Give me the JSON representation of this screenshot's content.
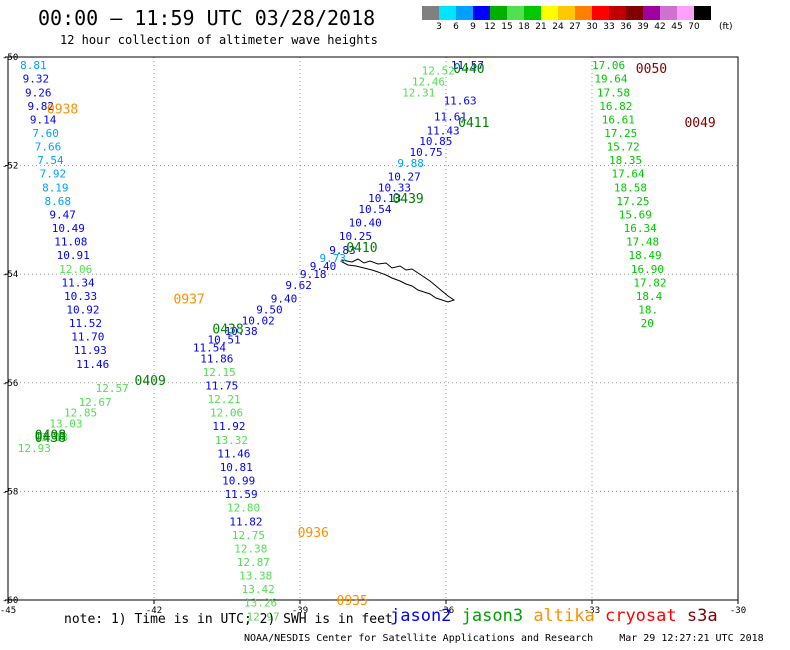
{
  "header": {
    "title": "00:00 – 11:59 UTC 03/28/2018",
    "subtitle": "12 hour collection of altimeter wave heights"
  },
  "colorbar": {
    "colors": [
      "#808080",
      "#00e5ff",
      "#00a0ff",
      "#0000ff",
      "#00b000",
      "#50e050",
      "#00c800",
      "#ffff00",
      "#ffc800",
      "#ff8000",
      "#ff0000",
      "#c00000",
      "#800000",
      "#a000a0",
      "#d070d0",
      "#ffa0ff",
      "#000000"
    ],
    "labels": [
      "3",
      "6",
      "9",
      "12",
      "15",
      "18",
      "21",
      "24",
      "27",
      "30",
      "33",
      "36",
      "39",
      "42",
      "45",
      "70"
    ],
    "unit": "(ft)"
  },
  "axes": {
    "lon_ticks": [
      {
        "value": -45,
        "label": "-45"
      },
      {
        "value": -42,
        "label": "-42"
      },
      {
        "value": -39,
        "label": "-39"
      },
      {
        "value": -36,
        "label": "-36"
      },
      {
        "value": -33,
        "label": "-33"
      },
      {
        "value": -30,
        "label": "-30"
      }
    ],
    "lat_ticks": [
      {
        "value": -50,
        "label": "-50"
      },
      {
        "value": -52,
        "label": "-52"
      },
      {
        "value": -54,
        "label": "-54"
      },
      {
        "value": -56,
        "label": "-56"
      },
      {
        "value": -58,
        "label": "-58"
      },
      {
        "value": -60,
        "label": "-60"
      }
    ]
  },
  "tracks": [
    {
      "name": "track-0938",
      "points": [
        {
          "lon": -44.75,
          "lat": -50.15,
          "v": "8.81",
          "c": "#00a0ff"
        },
        {
          "lon": -44.7,
          "lat": -50.4,
          "v": "9.32",
          "c": "#0000ff"
        },
        {
          "lon": -44.65,
          "lat": -50.65,
          "v": "9.26",
          "c": "#0000ff"
        },
        {
          "lon": -44.6,
          "lat": -50.9,
          "v": "9.82",
          "c": "#0000ff"
        },
        {
          "lon": -44.55,
          "lat": -51.15,
          "v": "9.14",
          "c": "#0000ff"
        },
        {
          "lon": -44.5,
          "lat": -51.4,
          "v": "7.60",
          "c": "#00a0ff"
        },
        {
          "lon": -44.45,
          "lat": -51.65,
          "v": "7.66",
          "c": "#00a0ff"
        },
        {
          "lon": -44.4,
          "lat": -51.9,
          "v": "7.54",
          "c": "#00a0ff"
        },
        {
          "lon": -44.35,
          "lat": -52.15,
          "v": "7.92",
          "c": "#00a0ff"
        },
        {
          "lon": -44.3,
          "lat": -52.4,
          "v": "8.19",
          "c": "#00a0ff"
        },
        {
          "lon": -44.25,
          "lat": -52.65,
          "v": "8.68",
          "c": "#00a0ff"
        },
        {
          "lon": -44.15,
          "lat": -52.9,
          "v": "9.47",
          "c": "#0000ff"
        },
        {
          "lon": -44.1,
          "lat": -53.15,
          "v": "10.49",
          "c": "#0000ff"
        },
        {
          "lon": -44.05,
          "lat": -53.4,
          "v": "11.08",
          "c": "#0000ff"
        },
        {
          "lon": -44.0,
          "lat": -53.65,
          "v": "10.91",
          "c": "#0000ff"
        },
        {
          "lon": -43.95,
          "lat": -53.9,
          "v": "12.06",
          "c": "#50e050"
        },
        {
          "lon": -43.9,
          "lat": -54.15,
          "v": "11.34",
          "c": "#0000ff"
        },
        {
          "lon": -43.85,
          "lat": -54.4,
          "v": "10.33",
          "c": "#0000ff"
        },
        {
          "lon": -43.8,
          "lat": -54.65,
          "v": "10.92",
          "c": "#0000ff"
        },
        {
          "lon": -43.75,
          "lat": -54.9,
          "v": "11.52",
          "c": "#0000ff"
        },
        {
          "lon": -43.7,
          "lat": -55.15,
          "v": "11.70",
          "c": "#0000ff"
        },
        {
          "lon": -43.65,
          "lat": -55.4,
          "v": "11.93",
          "c": "#0000ff"
        },
        {
          "lon": -43.6,
          "lat": -55.65,
          "v": "11.46",
          "c": "#0000ff"
        }
      ]
    },
    {
      "name": "track-0936",
      "points": [
        {
          "lon": -41.05,
          "lat": -55.55,
          "v": "11.86",
          "c": "#0000ff"
        },
        {
          "lon": -41.0,
          "lat": -55.8,
          "v": "12.15",
          "c": "#50e050"
        },
        {
          "lon": -40.95,
          "lat": -56.05,
          "v": "11.75",
          "c": "#0000ff"
        },
        {
          "lon": -40.9,
          "lat": -56.3,
          "v": "12.21",
          "c": "#50e050"
        },
        {
          "lon": -40.85,
          "lat": -56.55,
          "v": "12.06",
          "c": "#50e050"
        },
        {
          "lon": -40.8,
          "lat": -56.8,
          "v": "11.92",
          "c": "#0000ff"
        },
        {
          "lon": -40.75,
          "lat": -57.05,
          "v": "13.32",
          "c": "#50e050"
        },
        {
          "lon": -40.7,
          "lat": -57.3,
          "v": "11.46",
          "c": "#0000ff"
        },
        {
          "lon": -40.65,
          "lat": -57.55,
          "v": "10.81",
          "c": "#0000ff"
        },
        {
          "lon": -40.6,
          "lat": -57.8,
          "v": "10.99",
          "c": "#0000ff"
        },
        {
          "lon": -40.55,
          "lat": -58.05,
          "v": "11.59",
          "c": "#0000ff"
        },
        {
          "lon": -40.5,
          "lat": -58.3,
          "v": "12.80",
          "c": "#50e050"
        },
        {
          "lon": -40.45,
          "lat": -58.55,
          "v": "11.82",
          "c": "#0000ff"
        },
        {
          "lon": -40.4,
          "lat": -58.8,
          "v": "12.75",
          "c": "#50e050"
        },
        {
          "lon": -40.35,
          "lat": -59.05,
          "v": "12.38",
          "c": "#50e050"
        },
        {
          "lon": -40.3,
          "lat": -59.3,
          "v": "12.87",
          "c": "#50e050"
        },
        {
          "lon": -40.25,
          "lat": -59.55,
          "v": "13.38",
          "c": "#50e050"
        },
        {
          "lon": -40.2,
          "lat": -59.8,
          "v": "13.42",
          "c": "#50e050"
        },
        {
          "lon": -40.15,
          "lat": -60.05,
          "v": "13.26",
          "c": "#50e050"
        },
        {
          "lon": -40.1,
          "lat": -60.3,
          "v": "12.97",
          "c": "#50e050"
        }
      ]
    },
    {
      "name": "track-0050",
      "points": [
        {
          "lon": -33.0,
          "lat": -50.15,
          "v": "17.06",
          "c": "#00c800"
        },
        {
          "lon": -32.95,
          "lat": -50.4,
          "v": "19.64",
          "c": "#00c800"
        },
        {
          "lon": -32.9,
          "lat": -50.65,
          "v": "17.58",
          "c": "#00c800"
        },
        {
          "lon": -32.85,
          "lat": -50.9,
          "v": "16.82",
          "c": "#00c800"
        },
        {
          "lon": -32.8,
          "lat": -51.15,
          "v": "16.61",
          "c": "#00c800"
        },
        {
          "lon": -32.75,
          "lat": -51.4,
          "v": "17.25",
          "c": "#00c800"
        },
        {
          "lon": -32.7,
          "lat": -51.65,
          "v": "15.72",
          "c": "#00c800"
        },
        {
          "lon": -32.65,
          "lat": -51.9,
          "v": "18.35",
          "c": "#00c800"
        },
        {
          "lon": -32.6,
          "lat": -52.15,
          "v": "17.64",
          "c": "#00c800"
        },
        {
          "lon": -32.55,
          "lat": -52.4,
          "v": "18.58",
          "c": "#00c800"
        },
        {
          "lon": -32.5,
          "lat": -52.65,
          "v": "17.25",
          "c": "#00c800"
        },
        {
          "lon": -32.45,
          "lat": -52.9,
          "v": "15.69",
          "c": "#00c800"
        },
        {
          "lon": -32.35,
          "lat": -53.15,
          "v": "16.34",
          "c": "#00c800"
        },
        {
          "lon": -32.3,
          "lat": -53.4,
          "v": "17.48",
          "c": "#00c800"
        },
        {
          "lon": -32.25,
          "lat": -53.65,
          "v": "18.49",
          "c": "#00c800"
        },
        {
          "lon": -32.2,
          "lat": -53.9,
          "v": "16.90",
          "c": "#00c800"
        },
        {
          "lon": -32.15,
          "lat": -54.15,
          "v": "17.82",
          "c": "#00c800"
        },
        {
          "lon": -32.1,
          "lat": -54.4,
          "v": "18.4",
          "c": "#00c800"
        },
        {
          "lon": -32.05,
          "lat": -54.65,
          "v": "18.",
          "c": "#00c800"
        },
        {
          "lon": -32.0,
          "lat": -54.9,
          "v": "20",
          "c": "#00c800"
        }
      ]
    },
    {
      "name": "track-diagonal-upper",
      "points": [
        {
          "lon": -35.9,
          "lat": -50.15,
          "v": "11.57",
          "c": "#0000ff"
        },
        {
          "lon": -36.05,
          "lat": -50.8,
          "v": "11.63",
          "c": "#0000ff"
        },
        {
          "lon": -36.25,
          "lat": -51.1,
          "v": "11.61",
          "c": "#0000ff"
        },
        {
          "lon": -36.4,
          "lat": -51.35,
          "v": "11.43",
          "c": "#0000ff"
        },
        {
          "lon": -36.55,
          "lat": -51.55,
          "v": "10.85",
          "c": "#0000ff"
        },
        {
          "lon": -36.75,
          "lat": -51.75,
          "v": "10.75",
          "c": "#0000ff"
        },
        {
          "lon": -37.0,
          "lat": -51.95,
          "v": "9.88",
          "c": "#00a0ff"
        },
        {
          "lon": -37.2,
          "lat": -52.2,
          "v": "10.27",
          "c": "#0000ff"
        },
        {
          "lon": -37.4,
          "lat": -52.4,
          "v": "10.33",
          "c": "#0000ff"
        },
        {
          "lon": -37.6,
          "lat": -52.6,
          "v": "10.13",
          "c": "#0000ff"
        },
        {
          "lon": -37.8,
          "lat": -52.8,
          "v": "10.54",
          "c": "#0000ff"
        },
        {
          "lon": -38.0,
          "lat": -53.05,
          "v": "10.40",
          "c": "#0000ff"
        },
        {
          "lon": -38.2,
          "lat": -53.3,
          "v": "10.25",
          "c": "#0000ff"
        },
        {
          "lon": -38.4,
          "lat": -53.55,
          "v": "9.83",
          "c": "#0000ff"
        },
        {
          "lon": -38.6,
          "lat": -53.7,
          "v": "9.73",
          "c": "#00a0ff"
        },
        {
          "lon": -38.8,
          "lat": -53.85,
          "v": "9.40",
          "c": "#0000ff"
        },
        {
          "lon": -39.0,
          "lat": -54.0,
          "v": "9.18",
          "c": "#0000ff"
        },
        {
          "lon": -39.3,
          "lat": -54.2,
          "v": "9.62",
          "c": "#0000ff"
        },
        {
          "lon": -39.6,
          "lat": -54.45,
          "v": "9.40",
          "c": "#0000ff"
        },
        {
          "lon": -39.9,
          "lat": -54.65,
          "v": "9.50",
          "c": "#0000ff"
        },
        {
          "lon": -40.2,
          "lat": -54.85,
          "v": "10.02",
          "c": "#0000ff"
        },
        {
          "lon": -40.55,
          "lat": -55.05,
          "v": "10.38",
          "c": "#0000ff"
        },
        {
          "lon": -40.9,
          "lat": -55.2,
          "v": "10.51",
          "c": "#0000ff"
        },
        {
          "lon": -41.2,
          "lat": -55.35,
          "v": "11.54",
          "c": "#0000ff"
        }
      ]
    },
    {
      "name": "track-diagonal-lower",
      "points": [
        {
          "lon": -36.5,
          "lat": -50.25,
          "v": "12.52",
          "c": "#50e050"
        },
        {
          "lon": -36.7,
          "lat": -50.45,
          "v": "12.46",
          "c": "#50e050"
        },
        {
          "lon": -36.9,
          "lat": -50.65,
          "v": "12.31",
          "c": "#50e050"
        },
        {
          "lon": -43.2,
          "lat": -56.1,
          "v": "12.57",
          "c": "#50e050"
        },
        {
          "lon": -43.55,
          "lat": -56.35,
          "v": "12.67",
          "c": "#50e050"
        },
        {
          "lon": -43.85,
          "lat": -56.55,
          "v": "12.85",
          "c": "#50e050"
        },
        {
          "lon": -44.15,
          "lat": -56.75,
          "v": "13.03",
          "c": "#50e050"
        },
        {
          "lon": -44.45,
          "lat": -57.0,
          "v": "13.18",
          "c": "#50e050"
        },
        {
          "lon": -44.8,
          "lat": -57.2,
          "v": "12.93",
          "c": "#50e050"
        }
      ]
    }
  ],
  "pass_labels": [
    {
      "lon": -44.2,
      "lat": -50.95,
      "t": "0938",
      "c": "#ff9000"
    },
    {
      "lon": -41.6,
      "lat": -54.45,
      "t": "0937",
      "c": "#ff9000"
    },
    {
      "lon": -39.05,
      "lat": -58.75,
      "t": "0936",
      "c": "#ff9000"
    },
    {
      "lon": -38.25,
      "lat": -60.0,
      "t": "0935",
      "c": "#ff9000"
    },
    {
      "lon": -35.85,
      "lat": -50.2,
      "t": "0440",
      "c": "#008000"
    },
    {
      "lon": -35.75,
      "lat": -51.2,
      "t": "0411",
      "c": "#008000"
    },
    {
      "lon": -37.1,
      "lat": -52.6,
      "t": "0439",
      "c": "#008000"
    },
    {
      "lon": -38.05,
      "lat": -53.5,
      "t": "0410",
      "c": "#008000"
    },
    {
      "lon": -40.8,
      "lat": -55.0,
      "t": "0438",
      "c": "#008000"
    },
    {
      "lon": -42.4,
      "lat": -55.95,
      "t": "0409",
      "c": "#008000"
    },
    {
      "lon": -44.45,
      "lat": -56.95,
      "t": "0408",
      "c": "#008000"
    },
    {
      "lon": -44.45,
      "lat": -57.0,
      "t": "0438",
      "c": "#008000"
    },
    {
      "lon": -32.1,
      "lat": -50.2,
      "t": "0050",
      "c": "#800000"
    },
    {
      "lon": -31.1,
      "lat": -51.2,
      "t": "0049",
      "c": "#800000"
    }
  ],
  "footer": {
    "note": "note: 1) Time is in UTC; 2) SWH is in feet",
    "credit": "NOAA/NESDIS Center for Satellite Applications and Research",
    "timestamp": "Mar 29 12:27:21 UTC 2018"
  },
  "legend": [
    {
      "label": "jason2",
      "color": "#0000ff"
    },
    {
      "label": "jason3",
      "color": "#00a000"
    },
    {
      "label": "altika",
      "color": "#ff9000"
    },
    {
      "label": "cryosat",
      "color": "#ff0000"
    },
    {
      "label": "s3a",
      "color": "#800000"
    }
  ]
}
